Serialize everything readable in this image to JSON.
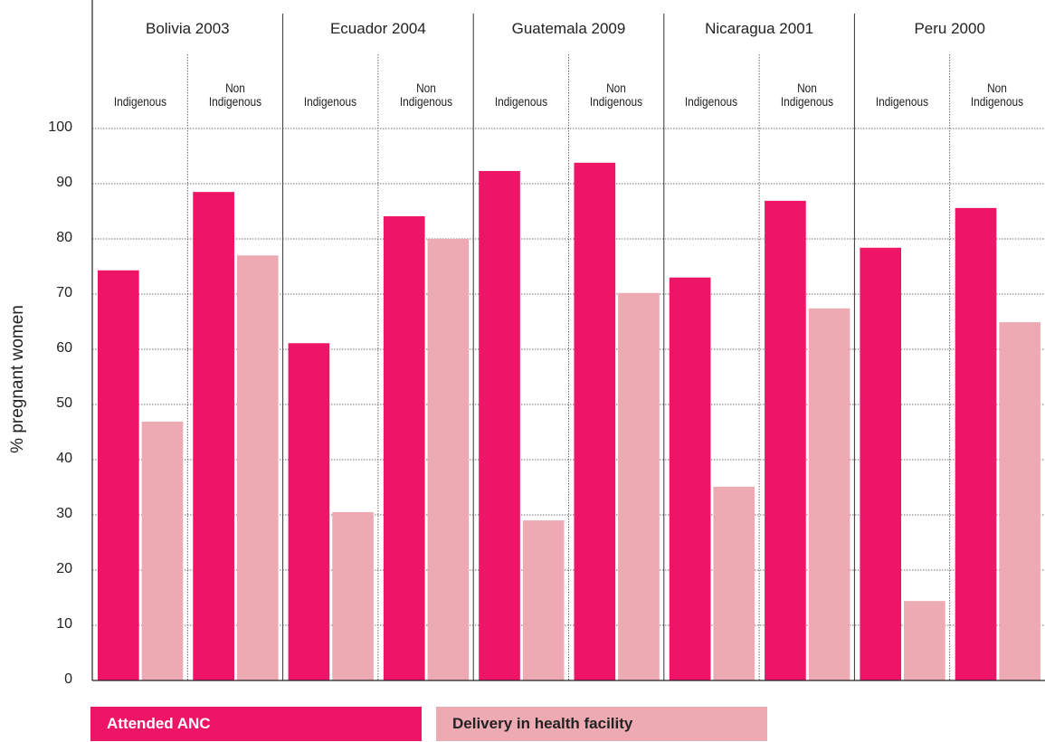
{
  "chart_data": {
    "type": "bar",
    "y_label": "% pregnant women",
    "groups": [
      "Bolivia 2003",
      "Ecuador 2004",
      "Guatemala 2009",
      "Nicaragua 2001",
      "Peru 2000"
    ],
    "categories": [
      "Indigenous",
      "Non Indigenous",
      "Indigenous",
      "Non Indigenous",
      "Indigenous",
      "Non Indigenous",
      "Indigenous",
      "Non Indigenous",
      "Indigenous",
      "Non Indigenous"
    ],
    "series": [
      {
        "name": "Attended ANC",
        "color": "#ee1566",
        "values": [
          74.3,
          88.5,
          61.1,
          84.1,
          92.3,
          93.8,
          73,
          86.9,
          78.4,
          85.6
        ]
      },
      {
        "name": "Delivery in health facility",
        "color": "#eeaab3",
        "values": [
          46.9,
          77,
          30.5,
          80,
          29,
          70.2,
          35.1,
          67.4,
          14.4,
          64.9
        ]
      }
    ],
    "ylim": [
      0,
      100
    ],
    "yticks": [
      0,
      10,
      20,
      30,
      40,
      50,
      60,
      70,
      80,
      90,
      100
    ],
    "grid": true
  }
}
